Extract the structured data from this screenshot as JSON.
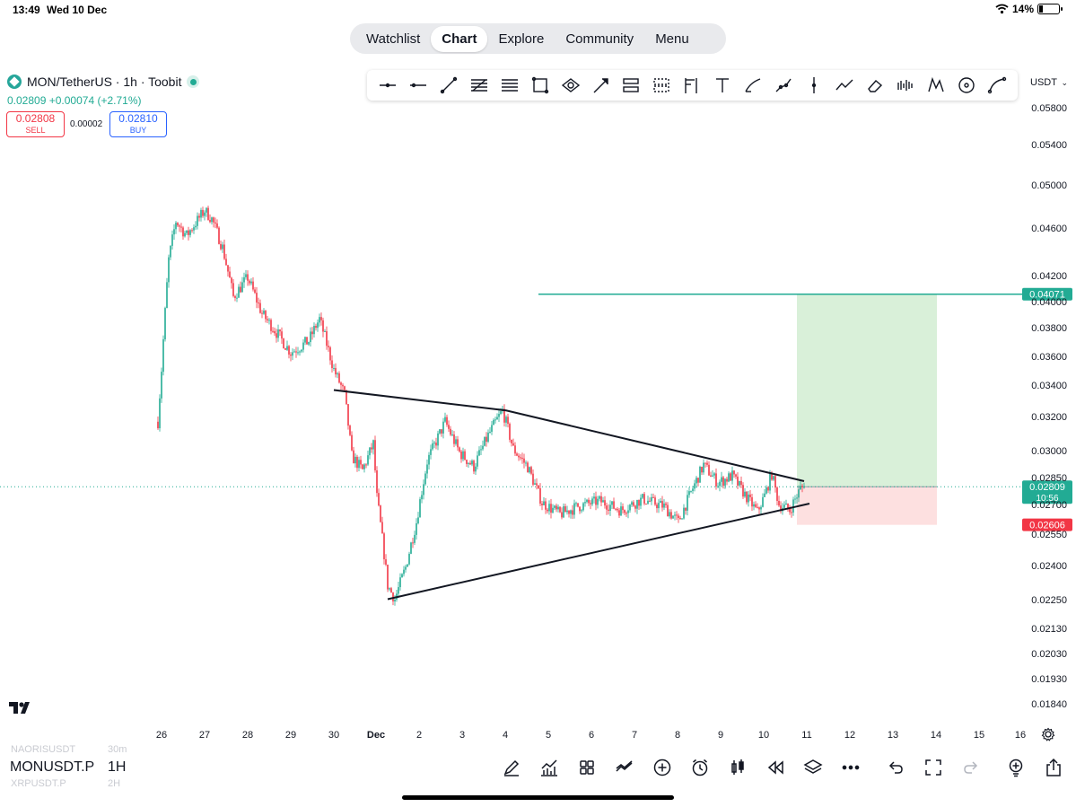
{
  "status_bar": {
    "time": "13:49",
    "date": "Wed 10 Dec",
    "battery": "14%"
  },
  "nav": {
    "tabs": [
      "Watchlist",
      "Chart",
      "Explore",
      "Community",
      "Menu"
    ],
    "active": "Chart"
  },
  "toolbar": {
    "tools": [
      "dot-line-icon",
      "horizontal-line-icon",
      "trend-line-icon",
      "fib-icon",
      "parallel-channel-icon",
      "rectangle-icon",
      "ellipse-icon",
      "arrow-icon",
      "gann-icon",
      "pitchfork-icon",
      "flag-icon",
      "text-icon",
      "brush-icon",
      "path-icon",
      "vertical-line-icon",
      "projection-icon",
      "eraser-icon",
      "pattern-icon",
      "xabcd-icon",
      "circle-icon",
      "curve-icon"
    ],
    "currency": "USDT"
  },
  "symbol": {
    "title": "MON/TetherUS · 1h · Toobit",
    "last_price": "0.02809",
    "change": "+0.00074 (+2.71%)",
    "sell_price": "0.02808",
    "sell_label": "SELL",
    "spread": "0.00002",
    "buy_price": "0.02810",
    "buy_label": "BUY"
  },
  "bottom": {
    "symbol": "MONUSDT.P",
    "interval": "1H",
    "ghost_above_symbol": "NAORISUSDT",
    "ghost_above_interval": "30m",
    "ghost_below_symbol": "XRPUSDT.P",
    "ghost_below_interval": "2H",
    "tools": [
      "draw-icon",
      "indicators-icon",
      "layout-icon",
      "compare-icon",
      "add-icon",
      "alert-icon",
      "candles-icon",
      "replay-icon",
      "layers-icon",
      "more-icon",
      "undo-icon",
      "fullscreen-icon",
      "redo-icon",
      "add-alert-icon",
      "share-icon"
    ]
  },
  "colors": {
    "up": "#22ab94",
    "down": "#f23645",
    "target": "#22ab94",
    "stop": "#f23645",
    "target_zone": "#d9f0d9",
    "stop_zone": "#fde0e0"
  },
  "chart_data": {
    "type": "candlestick",
    "title": "MON/TetherUS · 1h · Toobit",
    "x_tick_labels": [
      "26",
      "27",
      "28",
      "29",
      "30",
      "Dec",
      "2",
      "3",
      "4",
      "5",
      "6",
      "7",
      "8",
      "9",
      "10",
      "11",
      "12",
      "13",
      "14",
      "15",
      "16"
    ],
    "y_tick_labels": [
      "0.05800",
      "0.05400",
      "0.05000",
      "0.04600",
      "0.04200",
      "0.04000",
      "0.03800",
      "0.03600",
      "0.03400",
      "0.03200",
      "0.03000",
      "0.02850",
      "0.02700",
      "0.02550",
      "0.02400",
      "0.02250",
      "0.02130",
      "0.02030",
      "0.01930",
      "0.01840"
    ],
    "price_tags": [
      {
        "value": "0.04071",
        "role": "take-profit",
        "color": "#22ab94"
      },
      {
        "value": "0.02809",
        "role": "last-price",
        "countdown": "10:56",
        "color": "#22ab94"
      },
      {
        "value": "0.02606",
        "role": "stop-loss",
        "color": "#f23645"
      }
    ],
    "price_path": [
      [
        "25 22:00",
        0.0318
      ],
      [
        "26 00:00",
        0.0352
      ],
      [
        "26 04:00",
        0.0435
      ],
      [
        "26 08:00",
        0.0468
      ],
      [
        "26 14:00",
        0.0455
      ],
      [
        "27 00:00",
        0.0478
      ],
      [
        "27 04:00",
        0.047
      ],
      [
        "27 10:00",
        0.0445
      ],
      [
        "27 16:00",
        0.0405
      ],
      [
        "28 00:00",
        0.042
      ],
      [
        "28 08:00",
        0.0392
      ],
      [
        "28 16:00",
        0.0378
      ],
      [
        "29 00:00",
        0.0364
      ],
      [
        "29 10:00",
        0.0372
      ],
      [
        "29 16:00",
        0.0388
      ],
      [
        "30 00:00",
        0.0352
      ],
      [
        "30 06:00",
        0.0335
      ],
      [
        "30 10:00",
        0.0298
      ],
      [
        "30 16:00",
        0.029
      ],
      [
        "30 22:00",
        0.0305
      ],
      [
        "Dec 1 00:00",
        0.0275
      ],
      [
        "Dec 1 06:00",
        0.0232
      ],
      [
        "Dec 1 10:00",
        0.0226
      ],
      [
        "Dec 1 16:00",
        0.024
      ],
      [
        "Dec 1 22:00",
        0.0262
      ],
      [
        "Dec 2 04:00",
        0.0295
      ],
      [
        "Dec 2 14:00",
        0.0318
      ],
      [
        "Dec 2 22:00",
        0.03
      ],
      [
        "Dec 3 06:00",
        0.0292
      ],
      [
        "Dec 3 14:00",
        0.031
      ],
      [
        "Dec 3 22:00",
        0.0325
      ],
      [
        "Dec 4 04:00",
        0.0302
      ],
      [
        "Dec 4 12:00",
        0.0292
      ],
      [
        "Dec 4 20:00",
        0.0272
      ],
      [
        "Dec 5 06:00",
        0.0266
      ],
      [
        "Dec 5 16:00",
        0.027
      ],
      [
        "Dec 6 04:00",
        0.0273
      ],
      [
        "Dec 6 16:00",
        0.0268
      ],
      [
        "Dec 7 04:00",
        0.0274
      ],
      [
        "Dec 7 16:00",
        0.027
      ],
      [
        "Dec 8 00:00",
        0.0262
      ],
      [
        "Dec 8 08:00",
        0.028
      ],
      [
        "Dec 8 14:00",
        0.0293
      ],
      [
        "Dec 8 22:00",
        0.0283
      ],
      [
        "Dec 9 06:00",
        0.0287
      ],
      [
        "Dec 9 14:00",
        0.0275
      ],
      [
        "Dec 9 20:00",
        0.0267
      ],
      [
        "Dec 10 00:00",
        0.0276
      ],
      [
        "Dec 10 04:00",
        0.0288
      ],
      [
        "Dec 10 08:00",
        0.0271
      ],
      [
        "Dec 10 14:00",
        0.0268
      ],
      [
        "Dec 10 20:00",
        0.028
      ],
      [
        "Dec 10 22:00",
        0.02809
      ]
    ],
    "annotations": {
      "triangle_upper": [
        [
          "30 00:00",
          0.0338
        ],
        [
          "Dec 4 00:00",
          0.0325
        ],
        [
          "Dec 10 22:00",
          0.0284
        ]
      ],
      "triangle_lower": [
        [
          "Dec 1 06:00",
          0.0226
        ],
        [
          "Dec 10 22:00",
          0.027
        ]
      ],
      "target_line": 0.04071,
      "position": {
        "entry": 0.02809,
        "target": 0.04071,
        "stop": 0.02606,
        "from": "Dec 10 22:00",
        "to": "Dec 14 00:00"
      }
    }
  }
}
